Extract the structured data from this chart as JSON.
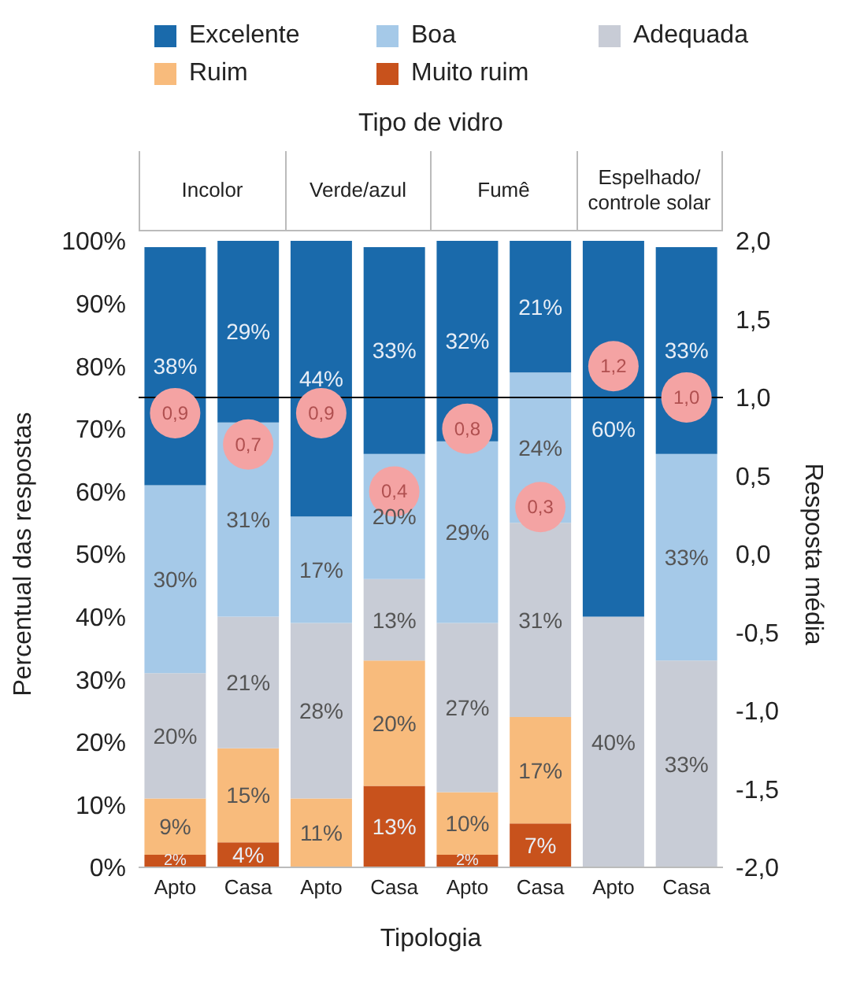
{
  "chart_data": {
    "type": "bar",
    "stacked": true,
    "title": "Tipo de vidro",
    "xlabel": "Tipologia",
    "ylabel": "Percentual das respostas",
    "y2label": "Resposta média",
    "categories": [
      "Apto",
      "Casa",
      "Apto",
      "Casa",
      "Apto",
      "Casa",
      "Apto",
      "Casa"
    ],
    "annotations": [
      "Incolor",
      "Verde/azul",
      "Fumê",
      "Espelhado/ controle solar"
    ],
    "series": [
      {
        "name": "Muito ruim",
        "color": "#c8521c",
        "values": [
          2,
          4,
          null,
          13,
          2,
          7,
          null,
          null
        ],
        "value_labels": [
          "2%",
          "4%",
          null,
          "13%",
          "2%",
          "7%",
          null,
          null
        ]
      },
      {
        "name": "Ruim",
        "color": "#f8bb7c",
        "values": [
          9,
          15,
          11,
          20,
          10,
          17,
          null,
          null
        ],
        "value_labels": [
          "9%",
          "15%",
          "11%",
          "20%",
          "10%",
          "17%",
          null,
          null
        ]
      },
      {
        "name": "Adequada",
        "color": "#c8ccd6",
        "values": [
          20,
          21,
          28,
          13,
          27,
          31,
          40,
          33
        ],
        "value_labels": [
          "20%",
          "21%",
          "28%",
          "13%",
          "27%",
          "31%",
          "40%",
          "33%"
        ]
      },
      {
        "name": "Boa",
        "color": "#a5c9e8",
        "values": [
          30,
          31,
          17,
          20,
          29,
          24,
          null,
          33
        ],
        "value_labels": [
          "30%",
          "31%",
          "17%",
          "20%",
          "29%",
          "24%",
          null,
          "33%"
        ]
      },
      {
        "name": "Excelente",
        "color": "#1a6aab",
        "values": [
          38,
          29,
          44,
          33,
          32,
          21,
          60,
          33
        ],
        "value_labels": [
          "38%",
          "29%",
          "44%",
          "33%",
          "32%",
          "21%",
          "60%",
          "33%"
        ]
      },
      {
        "type": "scatter",
        "axis": "y2",
        "color": "#f4a3a3",
        "marker": "circle",
        "values": [
          0.9,
          0.7,
          0.9,
          0.4,
          0.8,
          0.3,
          1.2,
          1.0
        ],
        "value_labels": [
          "0,9",
          "0,7",
          "0,9",
          "0,4",
          "0,8",
          "0,3",
          "1,2",
          "1,0"
        ]
      }
    ],
    "ylim": [
      0,
      100
    ],
    "yticks": [
      {
        "value": 0,
        "label": "0%"
      },
      {
        "value": 10,
        "label": "10%"
      },
      {
        "value": 20,
        "label": "20%"
      },
      {
        "value": 30,
        "label": "30%"
      },
      {
        "value": 40,
        "label": "40%"
      },
      {
        "value": 50,
        "label": "50%"
      },
      {
        "value": 60,
        "label": "60%"
      },
      {
        "value": 70,
        "label": "70%"
      },
      {
        "value": 80,
        "label": "80%"
      },
      {
        "value": 90,
        "label": "90%"
      },
      {
        "value": 100,
        "label": "100%"
      }
    ],
    "y2lim": [
      -2,
      2
    ],
    "y2ticks": [
      {
        "value": -2,
        "label": "-2,0"
      },
      {
        "value": -1.5,
        "label": "-1,5"
      },
      {
        "value": -1,
        "label": "-1,0"
      },
      {
        "value": -0.5,
        "label": "-0,5"
      },
      {
        "value": 0,
        "label": "0,0"
      },
      {
        "value": 0.5,
        "label": "0,5"
      },
      {
        "value": 1,
        "label": "1,0"
      },
      {
        "value": 1.5,
        "label": "1,5"
      },
      {
        "value": 2,
        "label": "2,0"
      }
    ],
    "ref_lines": [
      {
        "axis": "y2",
        "value": 1,
        "color": "#000000"
      }
    ],
    "legend": "top"
  }
}
